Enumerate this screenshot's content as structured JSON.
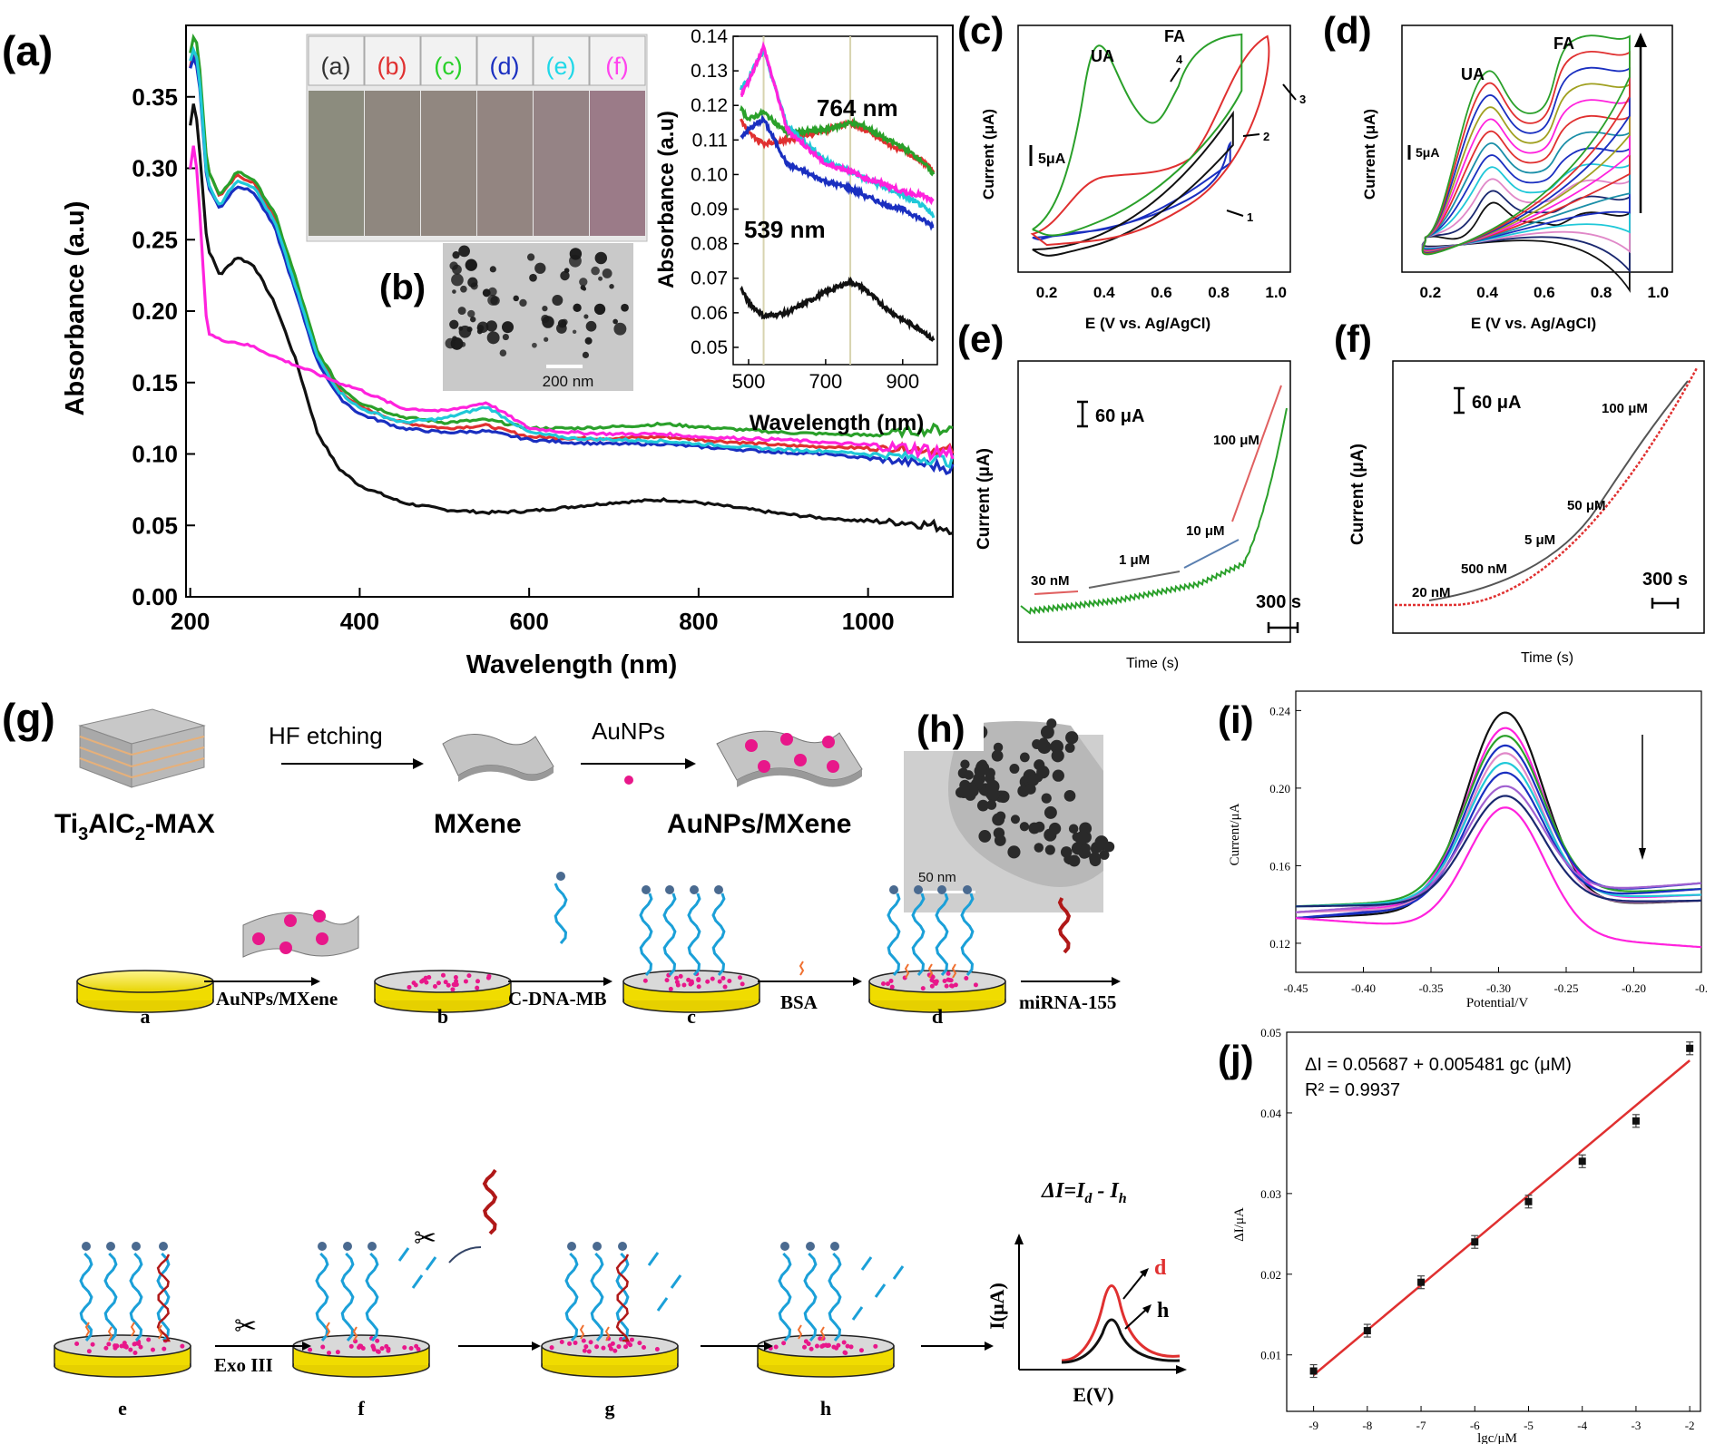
{
  "panels": {
    "a": "(a)",
    "b": "(b)",
    "c": "(c)",
    "d": "(d)",
    "e": "(e)",
    "f": "(f)",
    "g": "(g)",
    "h": "(h)",
    "i": "(i)",
    "j": "(j)"
  },
  "colors": {
    "black": "#111111",
    "red": "#e03030",
    "green": "#2aa02a",
    "blue": "#1a2fc0",
    "cyan": "#20c8d8",
    "magenta": "#ff22dd",
    "pink": "#e088c8",
    "yellow": "#f5e400",
    "teal": "#1b8fa8",
    "olive": "#a0a020",
    "navy": "#1a2870",
    "darkred": "#b01818"
  },
  "chart_data": [
    {
      "panel": "a",
      "type": "line",
      "xlabel": "Wavelength (nm)",
      "ylabel": "Absorbance (a.u)",
      "xlim": [
        195,
        1100
      ],
      "ylim": [
        0,
        0.4
      ],
      "xticks": [
        200,
        400,
        600,
        800,
        1000
      ],
      "yticks": [
        0.0,
        0.05,
        0.1,
        0.15,
        0.2,
        0.25,
        0.3,
        0.35
      ],
      "series": [
        {
          "name": "(a)",
          "color": "#111111",
          "x": [
            200,
            205,
            210,
            220,
            235,
            255,
            275,
            300,
            325,
            350,
            375,
            400,
            450,
            500,
            550,
            600,
            650,
            700,
            760,
            800,
            850,
            900,
            950,
            1000,
            1050,
            1100
          ],
          "y": [
            0.33,
            0.35,
            0.32,
            0.245,
            0.225,
            0.238,
            0.232,
            0.205,
            0.165,
            0.115,
            0.09,
            0.078,
            0.066,
            0.061,
            0.059,
            0.06,
            0.063,
            0.066,
            0.068,
            0.066,
            0.062,
            0.058,
            0.055,
            0.053,
            0.052,
            0.048
          ]
        },
        {
          "name": "(b)",
          "color": "#e03030",
          "x": [
            200,
            205,
            210,
            220,
            235,
            255,
            275,
            300,
            325,
            350,
            375,
            400,
            450,
            500,
            550,
            600,
            650,
            700,
            760,
            800,
            850,
            900,
            950,
            1000,
            1050,
            1100
          ],
          "y": [
            0.37,
            0.385,
            0.37,
            0.3,
            0.28,
            0.295,
            0.29,
            0.265,
            0.22,
            0.17,
            0.145,
            0.133,
            0.122,
            0.118,
            0.12,
            0.112,
            0.111,
            0.111,
            0.112,
            0.11,
            0.108,
            0.106,
            0.105,
            0.104,
            0.104,
            0.102
          ]
        },
        {
          "name": "(c)",
          "color": "#2aa02a",
          "x": [
            200,
            205,
            210,
            220,
            235,
            255,
            275,
            300,
            325,
            350,
            375,
            400,
            450,
            500,
            550,
            600,
            650,
            700,
            760,
            800,
            850,
            900,
            950,
            1000,
            1050,
            1100
          ],
          "y": [
            0.38,
            0.395,
            0.38,
            0.3,
            0.28,
            0.298,
            0.292,
            0.268,
            0.222,
            0.172,
            0.148,
            0.136,
            0.126,
            0.122,
            0.124,
            0.118,
            0.118,
            0.119,
            0.121,
            0.119,
            0.117,
            0.115,
            0.114,
            0.113,
            0.116,
            0.118
          ]
        },
        {
          "name": "(d)",
          "color": "#1a2fc0",
          "x": [
            200,
            205,
            210,
            220,
            235,
            255,
            275,
            300,
            325,
            350,
            375,
            400,
            450,
            500,
            550,
            600,
            650,
            700,
            760,
            800,
            850,
            900,
            950,
            1000,
            1050,
            1100
          ],
          "y": [
            0.37,
            0.38,
            0.365,
            0.288,
            0.272,
            0.288,
            0.283,
            0.258,
            0.212,
            0.165,
            0.14,
            0.128,
            0.118,
            0.115,
            0.116,
            0.11,
            0.108,
            0.107,
            0.107,
            0.105,
            0.103,
            0.101,
            0.1,
            0.097,
            0.094,
            0.09
          ]
        },
        {
          "name": "(e)",
          "color": "#20c8d8",
          "x": [
            200,
            205,
            210,
            220,
            235,
            255,
            275,
            300,
            325,
            350,
            375,
            400,
            450,
            500,
            550,
            600,
            650,
            700,
            760,
            800,
            850,
            900,
            950,
            1000,
            1050,
            1100
          ],
          "y": [
            0.375,
            0.385,
            0.37,
            0.29,
            0.274,
            0.292,
            0.287,
            0.262,
            0.216,
            0.168,
            0.144,
            0.132,
            0.122,
            0.125,
            0.133,
            0.115,
            0.111,
            0.11,
            0.109,
            0.107,
            0.105,
            0.103,
            0.102,
            0.1,
            0.098,
            0.095
          ]
        },
        {
          "name": "(f)",
          "color": "#ff22dd",
          "x": [
            200,
            205,
            210,
            220,
            235,
            255,
            275,
            300,
            325,
            350,
            375,
            400,
            450,
            500,
            550,
            600,
            650,
            700,
            760,
            800,
            850,
            900,
            950,
            1000,
            1050,
            1100
          ],
          "y": [
            0.3,
            0.32,
            0.28,
            0.185,
            0.18,
            0.178,
            0.175,
            0.168,
            0.162,
            0.156,
            0.15,
            0.145,
            0.132,
            0.13,
            0.136,
            0.118,
            0.115,
            0.114,
            0.114,
            0.112,
            0.111,
            0.11,
            0.108,
            0.106,
            0.104,
            0.1
          ]
        }
      ]
    },
    {
      "panel": "a-inset",
      "type": "line",
      "xlabel": "Wavelength (nm)",
      "ylabel": "Absorbance (a.u)",
      "xlim": [
        460,
        990
      ],
      "ylim": [
        0.045,
        0.14
      ],
      "xticks": [
        500,
        700,
        900
      ],
      "yticks": [
        0.05,
        0.06,
        0.07,
        0.08,
        0.09,
        0.1,
        0.11,
        0.12,
        0.13,
        0.14
      ],
      "annotations": [
        "764 nm",
        "539 nm"
      ],
      "vlines": [
        539,
        764
      ],
      "series": [
        {
          "name": "(a)",
          "color": "#111111",
          "x": [
            480,
            500,
            539,
            600,
            700,
            764,
            800,
            860,
            900,
            950,
            980
          ],
          "y": [
            0.067,
            0.063,
            0.059,
            0.06,
            0.066,
            0.069,
            0.067,
            0.061,
            0.058,
            0.055,
            0.052
          ]
        },
        {
          "name": "(b)",
          "color": "#e03030",
          "x": [
            480,
            500,
            539,
            600,
            700,
            764,
            800,
            860,
            900,
            950,
            980
          ],
          "y": [
            0.116,
            0.112,
            0.109,
            0.11,
            0.113,
            0.115,
            0.113,
            0.109,
            0.107,
            0.104,
            0.101
          ]
        },
        {
          "name": "(c)",
          "color": "#2aa02a",
          "x": [
            480,
            500,
            539,
            600,
            700,
            764,
            800,
            860,
            900,
            950,
            980
          ],
          "y": [
            0.119,
            0.116,
            0.118,
            0.112,
            0.113,
            0.115,
            0.114,
            0.11,
            0.108,
            0.104,
            0.1
          ]
        },
        {
          "name": "(d)",
          "color": "#1a2fc0",
          "x": [
            480,
            500,
            539,
            600,
            700,
            764,
            800,
            860,
            900,
            950,
            980
          ],
          "y": [
            0.111,
            0.113,
            0.116,
            0.103,
            0.098,
            0.096,
            0.094,
            0.091,
            0.09,
            0.087,
            0.085
          ]
        },
        {
          "name": "(e)",
          "color": "#20c8d8",
          "x": [
            480,
            500,
            539,
            600,
            700,
            764,
            800,
            860,
            900,
            950,
            980
          ],
          "y": [
            0.125,
            0.128,
            0.136,
            0.114,
            0.104,
            0.101,
            0.099,
            0.096,
            0.094,
            0.091,
            0.088
          ]
        },
        {
          "name": "(f)",
          "color": "#ff22dd",
          "x": [
            480,
            500,
            539,
            600,
            700,
            764,
            800,
            860,
            900,
            950,
            980
          ],
          "y": [
            0.123,
            0.127,
            0.137,
            0.113,
            0.103,
            0.101,
            0.099,
            0.097,
            0.095,
            0.094,
            0.092
          ]
        }
      ]
    },
    {
      "panel": "c",
      "type": "line",
      "xlabel": "E (V vs. Ag/AgCl)",
      "ylabel": "Current (μA)",
      "xlim": [
        0.1,
        1.05
      ],
      "xticks": [
        0.2,
        0.4,
        0.6,
        0.8,
        1.0
      ],
      "scale_bar": "5μA",
      "annotations": [
        "UA",
        "FA",
        "1",
        "2",
        "3",
        "4"
      ]
    },
    {
      "panel": "d",
      "type": "line",
      "xlabel": "E (V vs. Ag/AgCl)",
      "ylabel": "Current (μA)",
      "xlim": [
        0.1,
        1.05
      ],
      "xticks": [
        0.2,
        0.4,
        0.6,
        0.8,
        1.0
      ],
      "scale_bar": "5μA",
      "annotations": [
        "UA",
        "FA"
      ]
    },
    {
      "panel": "e",
      "type": "line",
      "xlabel": "Time (s)",
      "ylabel": "Current (μA)",
      "scale_bars": [
        "60 μA",
        "300 s"
      ],
      "annotations": [
        "30 nM",
        "1 μM",
        "10 μM",
        "100 μM"
      ]
    },
    {
      "panel": "f",
      "type": "line",
      "xlabel": "Time (s)",
      "ylabel": "Current (μA)",
      "scale_bars": [
        "60 μA",
        "300 s"
      ],
      "annotations": [
        "20 nM",
        "500 nM",
        "5 μM",
        "50 μM",
        "100 μM"
      ]
    },
    {
      "panel": "i",
      "type": "line",
      "xlabel": "Potential/V",
      "ylabel": "Current/μA",
      "xlim": [
        -0.45,
        -0.15
      ],
      "ylim": [
        0.105,
        0.25
      ],
      "xticks": [
        -0.45,
        -0.4,
        -0.35,
        -0.3,
        -0.25,
        -0.2,
        -0.15
      ],
      "xtick_labels": [
        "-0.45",
        "-0.40",
        "-0.35",
        "-0.30",
        "-0.25",
        "-0.20",
        "-0."
      ],
      "yticks": [
        0.12,
        0.16,
        0.2,
        0.24
      ],
      "peak_x": -0.295,
      "peak_heights": [
        0.239,
        0.231,
        0.227,
        0.222,
        0.218,
        0.213,
        0.208,
        0.201,
        0.196,
        0.19
      ]
    },
    {
      "panel": "j",
      "type": "scatter",
      "xlabel": "lgc/μM",
      "ylabel": "ΔI/μA",
      "xlim": [
        -9.5,
        -1.8
      ],
      "ylim": [
        0.003,
        0.05
      ],
      "xticks": [
        -9,
        -8,
        -7,
        -6,
        -5,
        -4,
        -3,
        -2
      ],
      "yticks": [
        0.01,
        0.02,
        0.03,
        0.04,
        0.05
      ],
      "x": [
        -9,
        -8,
        -7,
        -6,
        -5,
        -4,
        -3,
        -2
      ],
      "y": [
        0.008,
        0.013,
        0.019,
        0.024,
        0.029,
        0.034,
        0.039,
        0.048
      ],
      "fit_line": {
        "x": [
          -9,
          -2
        ],
        "y": [
          0.0075,
          0.0465
        ]
      },
      "equation": "ΔI = 0.05687 + 0.005481 gc (μM)",
      "r2": "R² = 0.9937"
    }
  ],
  "texts": {
    "inset_photo_labels": [
      "(a)",
      "(b)",
      "(c)",
      "(d)",
      "(e)",
      "(f)"
    ],
    "tem_scale_b": "200 nm",
    "tem_scale_h": "50 nm",
    "scheme": {
      "hf": "HF etching",
      "aunps": "AuNPs",
      "max_prefix": "Ti",
      "max_sub1": "3",
      "max_mid": "AlC",
      "max_sub2": "2",
      "max_suffix": "-MAX",
      "mxene": "MXene",
      "aunps_mxene": "AuNPs/MXene",
      "step_labels": [
        "AuNPs/MXene",
        "C-DNA-MB",
        "BSA",
        "miRNA-155"
      ],
      "electrode_letters": [
        "a",
        "b",
        "c",
        "d"
      ],
      "exo": "Exo III",
      "electrode_letters2": [
        "e",
        "f",
        "g",
        "h"
      ],
      "formula": "ΔI=I",
      "formula_d": "d",
      "formula_mid": " - I",
      "formula_h": "h",
      "axis_y": "I(μA)",
      "axis_x": "E(V)",
      "legend_d": "d",
      "legend_h": "h"
    }
  }
}
